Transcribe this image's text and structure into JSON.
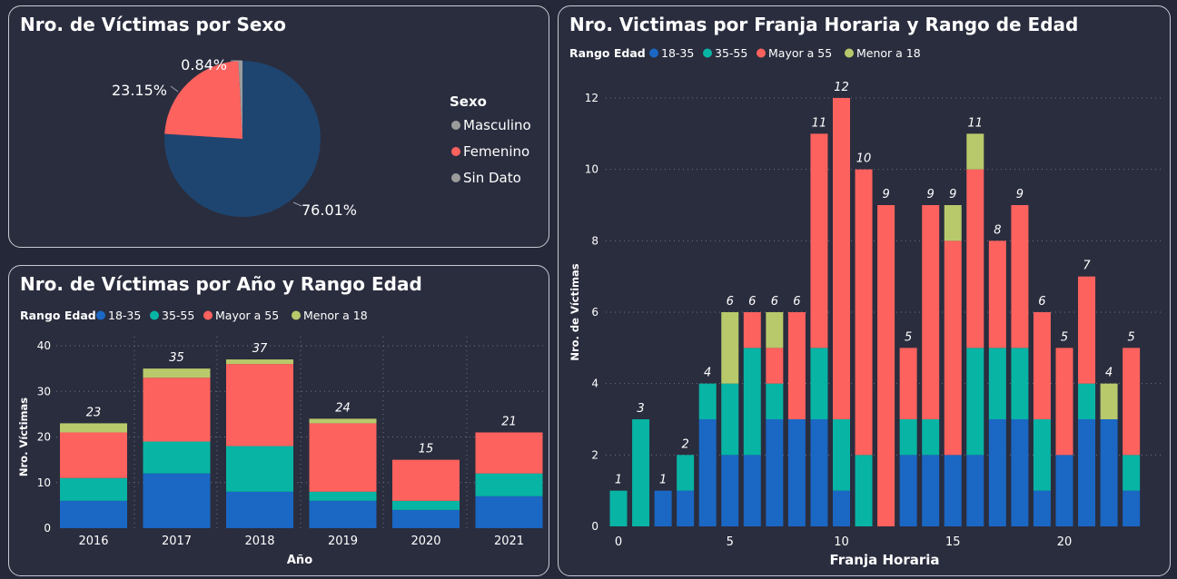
{
  "colors": {
    "c1835": "#1a67c4",
    "c3555": "#08b4a4",
    "cMayor55": "#fd625e",
    "cMenor18": "#b8c96b",
    "cMasculino": "#1e4570",
    "cFemenino": "#fd625e",
    "cSinDato": "#9b9b9b",
    "axisText": "#ffffff",
    "grid": "#6e7280"
  },
  "panels": {
    "sexo": {
      "title": "Nro. de Víctimas por Sexo"
    },
    "anio": {
      "title": "Nro. de Víctimas por Año y Rango Edad"
    },
    "franja": {
      "title": "Nro. Victimas por Franja Horaria y Rango de Edad"
    }
  },
  "chart_data": [
    {
      "type": "pie",
      "title": "Nro. de Víctimas por Sexo",
      "legend_title": "Sexo",
      "legend_placement": "right",
      "slices": [
        {
          "name": "Masculino",
          "value": 76.01,
          "label": "76.01%"
        },
        {
          "name": "Femenino",
          "value": 23.15,
          "label": "23.15%"
        },
        {
          "name": "Sin Dato",
          "value": 0.84,
          "label": "0.84%"
        }
      ]
    },
    {
      "type": "bar",
      "stacked": true,
      "title": "Nro. de Víctimas por Año y Rango Edad",
      "legend_title": "Rango Edad",
      "legend_placement": "top-left",
      "xlabel": "Año",
      "ylabel": "Nro. Víctimas",
      "ylim": [
        0,
        40
      ],
      "yticks": [
        0,
        10,
        20,
        30,
        40
      ],
      "grid": true,
      "categories": [
        "2016",
        "2017",
        "2018",
        "2019",
        "2020",
        "2021"
      ],
      "series": [
        {
          "name": "18-35",
          "values": [
            6,
            12,
            8,
            6,
            4,
            7
          ]
        },
        {
          "name": "35-55",
          "values": [
            5,
            7,
            10,
            2,
            2,
            5
          ]
        },
        {
          "name": "Mayor a 55",
          "values": [
            10,
            14,
            18,
            15,
            9,
            9
          ]
        },
        {
          "name": "Menor a 18",
          "values": [
            2,
            2,
            1,
            1,
            0,
            0
          ]
        }
      ],
      "totals": [
        23,
        35,
        37,
        24,
        15,
        21
      ]
    },
    {
      "type": "bar",
      "stacked": true,
      "title": "Nro. Victimas por Franja Horaria y Rango de Edad",
      "legend_title": "Rango Edad",
      "legend_placement": "top-left",
      "xlabel": "Franja Horaria",
      "ylabel": "Nro. de Víctimas",
      "ylim": [
        0,
        12
      ],
      "yticks": [
        0,
        2,
        4,
        6,
        8,
        10,
        12
      ],
      "xticks": [
        0,
        5,
        10,
        15,
        20
      ],
      "grid": true,
      "categories": [
        0,
        1,
        2,
        3,
        4,
        5,
        6,
        7,
        8,
        9,
        10,
        11,
        12,
        13,
        14,
        15,
        16,
        17,
        18,
        19,
        20,
        21,
        22,
        23
      ],
      "series": [
        {
          "name": "18-35",
          "values": [
            0,
            0,
            1,
            1,
            3,
            2,
            2,
            3,
            3,
            3,
            1,
            0,
            0,
            2,
            2,
            2,
            2,
            3,
            3,
            1,
            2,
            3,
            3,
            1
          ]
        },
        {
          "name": "35-55",
          "values": [
            1,
            3,
            0,
            1,
            1,
            2,
            3,
            1,
            0,
            2,
            2,
            2,
            0,
            1,
            1,
            0,
            3,
            2,
            2,
            2,
            0,
            1,
            0,
            1
          ]
        },
        {
          "name": "Mayor a 55",
          "values": [
            0,
            0,
            0,
            0,
            0,
            0,
            1,
            1,
            3,
            6,
            9,
            8,
            9,
            2,
            6,
            6,
            5,
            3,
            4,
            3,
            3,
            3,
            0,
            3
          ]
        },
        {
          "name": "Menor a 18",
          "values": [
            0,
            0,
            0,
            0,
            0,
            2,
            0,
            1,
            0,
            0,
            0,
            0,
            0,
            0,
            0,
            1,
            1,
            0,
            0,
            0,
            0,
            0,
            1,
            0
          ]
        }
      ],
      "totals": [
        1,
        3,
        1,
        2,
        4,
        6,
        6,
        6,
        6,
        11,
        12,
        10,
        9,
        5,
        9,
        9,
        11,
        8,
        9,
        6,
        5,
        7,
        4,
        5
      ]
    }
  ]
}
